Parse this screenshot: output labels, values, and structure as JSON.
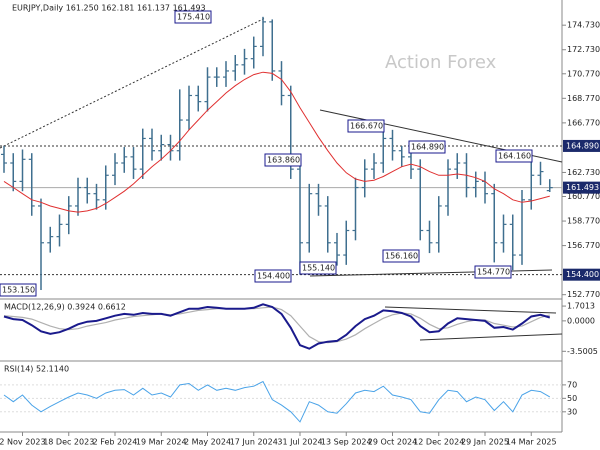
{
  "chart_data": {
    "type": "ohlc",
    "title": "EURJPY,Daily  161.250 162.181 161.137 161.493",
    "watermark": "Action Forex",
    "color": "#3f6f8f",
    "categories": [
      null,
      null,
      "2 Nov 2023",
      null,
      null,
      null,
      null,
      "18 Dec 2023",
      null,
      null,
      null,
      null,
      "2 Feb 2024",
      null,
      null,
      null,
      null,
      "19 Mar 2024",
      null,
      null,
      null,
      null,
      "2 May 2024",
      null,
      null,
      null,
      null,
      "17 Jun 2024",
      null,
      null,
      null,
      null,
      "31 Jul 2024",
      null,
      null,
      null,
      null,
      "13 Sep 2024",
      null,
      null,
      null,
      null,
      "29 Oct 2024",
      null,
      null,
      null,
      null,
      "12 Dec 2024",
      null,
      null,
      null,
      null,
      "29 Jan 2025",
      null,
      null,
      null,
      null,
      "14 Mar 2025",
      null,
      null
    ],
    "open": [
      164.2,
      163.5,
      162,
      163.8,
      160,
      157,
      157.5,
      158.5,
      160,
      161.5,
      161,
      160.5,
      162.5,
      163.5,
      164,
      163,
      165.5,
      164.5,
      165,
      164.5,
      167,
      169,
      168.5,
      170.5,
      170.5,
      171,
      171.5,
      172,
      173,
      175,
      171,
      169,
      163,
      157,
      161,
      160,
      157,
      156,
      158,
      161.5,
      163,
      163.5,
      165.5,
      164.5,
      164,
      163,
      158,
      157,
      160,
      163,
      163.5,
      161.5,
      162,
      161,
      157,
      158.5,
      156,
      160.5,
      162.5,
      161.25
    ],
    "high": [
      164.89,
      164.3,
      164.6,
      164.3,
      160.6,
      158.3,
      159.3,
      160.8,
      162.3,
      162.3,
      161.8,
      163.3,
      164.3,
      164.8,
      164.8,
      166.3,
      166.3,
      165.8,
      165.8,
      169.5,
      169.8,
      169.8,
      171.3,
      171.3,
      171.8,
      172.3,
      172.8,
      173.8,
      175.41,
      175.2,
      171.8,
      169.8,
      163.8,
      161.8,
      161.8,
      160.8,
      157.8,
      158.8,
      162.3,
      163.8,
      164.3,
      166.67,
      166.2,
      164.89,
      164.8,
      163.8,
      158.8,
      160.8,
      163.8,
      164.3,
      164.3,
      162.8,
      162.8,
      161.8,
      159.3,
      159.3,
      161.3,
      164.16,
      163.6,
      162.181
    ],
    "low": [
      162.7,
      161.2,
      161.2,
      159.2,
      153.15,
      156.2,
      156.7,
      157.7,
      159.2,
      160.2,
      159.7,
      159.7,
      161.7,
      162.7,
      162.2,
      162.2,
      163.7,
      163.7,
      163.7,
      163.7,
      166.2,
      167.7,
      167.7,
      169.7,
      169.7,
      170.2,
      170.7,
      171.2,
      172.2,
      170.2,
      168.2,
      162.2,
      154.4,
      156.2,
      159.2,
      156.2,
      155.14,
      155.2,
      157.2,
      160.7,
      162.2,
      162.7,
      163.7,
      163.2,
      162.2,
      157.2,
      156.16,
      156.2,
      159.2,
      162.2,
      160.7,
      160.7,
      160.2,
      155.4,
      156.2,
      154.77,
      155.2,
      159.7,
      161.7,
      161.137
    ],
    "close": [
      163.5,
      162,
      163.8,
      160,
      157,
      157.5,
      158.5,
      160,
      161.5,
      161,
      160.5,
      162.5,
      163.5,
      164,
      163,
      165.5,
      164.5,
      165,
      164.5,
      167,
      169,
      168.5,
      170.5,
      170.5,
      171,
      171.5,
      172,
      173,
      175,
      171,
      169,
      163,
      157,
      161,
      160,
      157,
      156,
      158,
      161.5,
      163,
      163.5,
      165.5,
      164.5,
      164,
      163,
      158,
      157,
      160,
      163,
      163.5,
      161.5,
      162,
      161,
      157,
      158.5,
      156,
      160.5,
      162.5,
      162.8,
      161.493
    ],
    "ma": {
      "color": "#e03030",
      "values": [
        162,
        161.5,
        161,
        160.5,
        160.3,
        160,
        159.8,
        159.6,
        159.5,
        159.6,
        159.8,
        160.2,
        160.7,
        161.2,
        161.8,
        162.5,
        163.2,
        163.8,
        164.5,
        165.3,
        166.2,
        167,
        167.8,
        168.5,
        169.2,
        169.8,
        170.3,
        170.7,
        170.9,
        170.8,
        170.3,
        169.3,
        168,
        166.8,
        165.6,
        164.5,
        163.5,
        162.7,
        162.2,
        162,
        162.1,
        162.4,
        162.8,
        163.2,
        163.4,
        163.2,
        162.8,
        162.5,
        162.5,
        162.6,
        162.5,
        162.3,
        162,
        161.4,
        161,
        160.5,
        160.3,
        160.4,
        160.6,
        160.8
      ]
    },
    "ylim": [
      152.5,
      176.7
    ],
    "yticks": [
      {
        "value": 174.73,
        "label": "174.730"
      },
      {
        "value": 172.73,
        "label": "172.730"
      },
      {
        "value": 170.77,
        "label": "170.770"
      },
      {
        "value": 168.77,
        "label": "168.770"
      },
      {
        "value": 166.77,
        "label": "166.770"
      },
      {
        "value": 162.73,
        "label": "162.730"
      },
      {
        "value": 160.77,
        "label": "160.770"
      },
      {
        "value": 158.77,
        "label": "158.770"
      },
      {
        "value": 156.77,
        "label": "156.770"
      },
      {
        "value": 152.77,
        "label": "152.770"
      }
    ],
    "price_levels": [
      {
        "value": 164.89,
        "label": "164.890"
      },
      {
        "value": 161.493,
        "label": "161.493"
      },
      {
        "value": 154.4,
        "label": "154.400"
      }
    ],
    "annotations": [
      {
        "value": 175.41,
        "label": "175.410"
      },
      {
        "value": 166.67,
        "label": "166.670"
      },
      {
        "value": 164.89,
        "label": "164.890"
      },
      {
        "value": 164.16,
        "label": "164.160"
      },
      {
        "value": 163.86,
        "label": "163.860"
      },
      {
        "value": 155.14,
        "label": "155.140"
      },
      {
        "value": 156.16,
        "label": "156.160"
      },
      {
        "value": 154.77,
        "label": "154.770"
      },
      {
        "value": 154.4,
        "label": "154.400"
      },
      {
        "value": 153.15,
        "label": "153.150"
      }
    ],
    "macd": {
      "label": "MACD(12,26,9) 0.3924 0.6612",
      "ylim": [
        -4.5,
        2.4
      ],
      "yticks": [
        1.7013,
        {
          "value": 0,
          "label": "0.0000"
        },
        -3.5005
      ],
      "series": [
        {
          "color": "#1a1a8c",
          "values": [
            0.5,
            0.2,
            0.1,
            -0.5,
            -1.2,
            -1.5,
            -1.3,
            -0.9,
            -0.4,
            -0.1,
            0,
            0.3,
            0.6,
            0.8,
            0.7,
            0.9,
            0.8,
            0.8,
            0.6,
            1,
            1.4,
            1.4,
            1.6,
            1.5,
            1.4,
            1.4,
            1.4,
            1.5,
            1.9,
            1.6,
            0.8,
            -0.8,
            -2.8,
            -3.2,
            -2.6,
            -2.4,
            -2.3,
            -1.6,
            -0.6,
            0.2,
            0.6,
            1.2,
            1.1,
            0.9,
            0.5,
            -0.6,
            -1.3,
            -1.2,
            -0.3,
            0.3,
            0.2,
            0.1,
            0,
            -0.8,
            -0.7,
            -1.0,
            -0.3,
            0.5,
            0.7,
            0.3924
          ]
        },
        {
          "color": "#b0b0b0",
          "values": [
            0.6,
            0.5,
            0.4,
            0.2,
            -0.2,
            -0.6,
            -0.9,
            -1.0,
            -0.9,
            -0.6,
            -0.4,
            -0.2,
            0.1,
            0.3,
            0.5,
            0.6,
            0.7,
            0.8,
            0.7,
            0.8,
            1.0,
            1.2,
            1.3,
            1.4,
            1.4,
            1.4,
            1.4,
            1.4,
            1.5,
            1.6,
            1.3,
            0.6,
            -0.6,
            -1.8,
            -2.4,
            -2.5,
            -2.4,
            -2.1,
            -1.6,
            -0.9,
            -0.3,
            0.3,
            0.7,
            0.9,
            0.8,
            0.3,
            -0.4,
            -0.9,
            -0.8,
            -0.4,
            -0.1,
            0.1,
            0.1,
            -0.3,
            -0.5,
            -0.7,
            -0.6,
            -0.1,
            0.4,
            0.6612
          ]
        }
      ]
    },
    "rsi": {
      "label": "RSI(14) 52.1140",
      "ylim": [
        0,
        104
      ],
      "yticks": [
        70,
        50,
        30
      ],
      "color": "#4aa3e8",
      "values": [
        55,
        45,
        55,
        40,
        30,
        38,
        45,
        52,
        58,
        55,
        50,
        58,
        62,
        63,
        55,
        65,
        55,
        58,
        52,
        70,
        72,
        62,
        70,
        62,
        65,
        62,
        66,
        68,
        75,
        48,
        40,
        30,
        15,
        45,
        40,
        30,
        28,
        42,
        58,
        62,
        60,
        68,
        55,
        52,
        48,
        30,
        28,
        48,
        62,
        60,
        45,
        52,
        48,
        32,
        45,
        30,
        55,
        62,
        60,
        52.114
      ]
    }
  }
}
